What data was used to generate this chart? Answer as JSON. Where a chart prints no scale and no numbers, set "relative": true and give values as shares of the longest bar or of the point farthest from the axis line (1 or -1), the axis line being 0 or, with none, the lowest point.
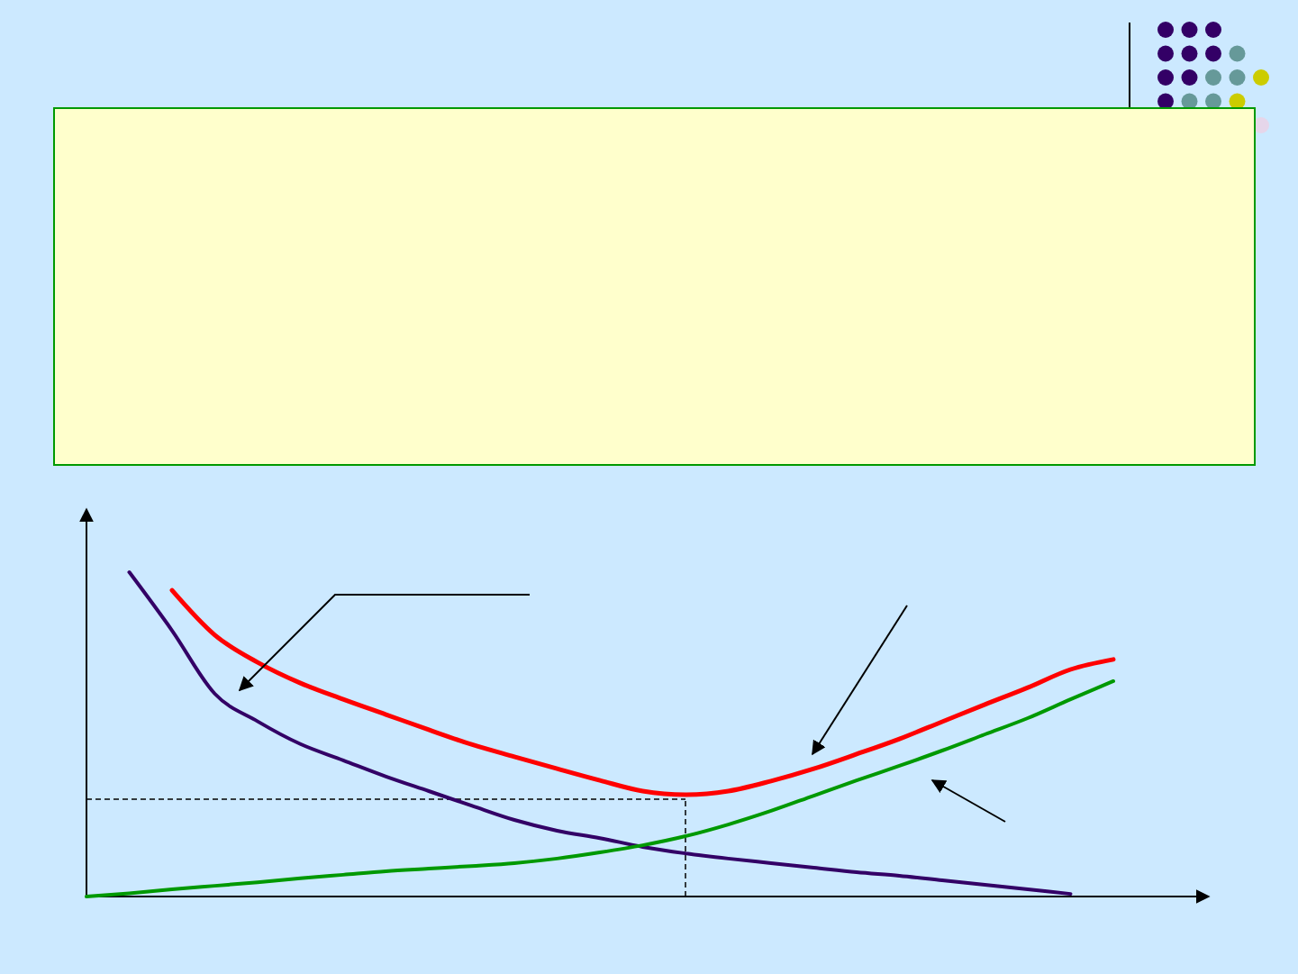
{
  "chart_data": {
    "type": "line",
    "relative": true,
    "categories": [
      null,
      null,
      null,
      null,
      null,
      null,
      null,
      null,
      null,
      null,
      null,
      null,
      null,
      null,
      null,
      null,
      null,
      null,
      null,
      null,
      null,
      null,
      null,
      null,
      null
    ],
    "series": [
      {
        "color": "#330066",
        "values": [
          null,
          1.0,
          0.82,
          0.625,
          0.54,
          0.47,
          0.42,
          0.37,
          0.325,
          0.28,
          0.236,
          0.203,
          0.18,
          0.153,
          0.133,
          0.117,
          0.103,
          0.089,
          0.075,
          0.064,
          0.05,
          0.036,
          0.022,
          0.008,
          null
        ]
      },
      {
        "color": "#009900",
        "values": [
          0,
          0.01,
          0.022,
          0.033,
          0.044,
          0.056,
          0.067,
          0.078,
          0.086,
          0.094,
          0.103,
          0.117,
          0.136,
          0.158,
          0.186,
          0.222,
          0.264,
          0.311,
          0.358,
          0.403,
          0.45,
          0.5,
          0.55,
          0.608,
          0.664
        ]
      },
      {
        "color": "#ff0000",
        "values": [
          null,
          null,
          0.944,
          0.806,
          0.722,
          0.658,
          0.608,
          0.561,
          0.514,
          0.469,
          0.431,
          0.394,
          0.358,
          0.325,
          0.314,
          0.325,
          0.356,
          0.394,
          0.439,
          0.486,
          0.539,
          0.592,
          0.644,
          0.7,
          0.731
        ]
      }
    ],
    "ref_lines": [
      {
        "axis": "y",
        "value": 0.3,
        "line_style": "dashed"
      }
    ],
    "grid": false,
    "legend": false,
    "marker": "none",
    "line_style": "solid"
  }
}
